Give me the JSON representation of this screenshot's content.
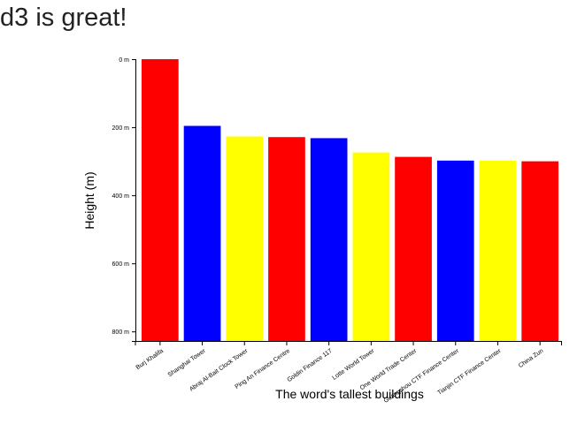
{
  "heading": "d3 is great!",
  "colors": [
    "#ff0000",
    "#0000ff",
    "#ffff00"
  ],
  "chart_data": {
    "type": "bar",
    "title": "",
    "xlabel": "The word's tallest buildings",
    "ylabel": "Height (m)",
    "categories": [
      "Burj Khalifa",
      "Shanghai Tower",
      "Abraj Al-Bait Clock Tower",
      "Ping An Finance Centre",
      "Goldin Finance 117",
      "Lotte World Tower",
      "One World Trade Center",
      "Guangzhou CTF Finance Center",
      "Tianjin CTF Finance Center",
      "China Zun"
    ],
    "values": [
      828,
      632,
      601,
      599,
      596,
      554,
      541,
      530,
      530,
      528
    ],
    "ylim": [
      0,
      828
    ],
    "y_axis_inverted": true,
    "yticks": [
      0,
      200,
      400,
      600,
      800
    ],
    "ytick_labels": [
      "0 m",
      "200 m",
      "400 m",
      "600 m",
      "800 m"
    ],
    "grid": false,
    "legend": "none"
  }
}
